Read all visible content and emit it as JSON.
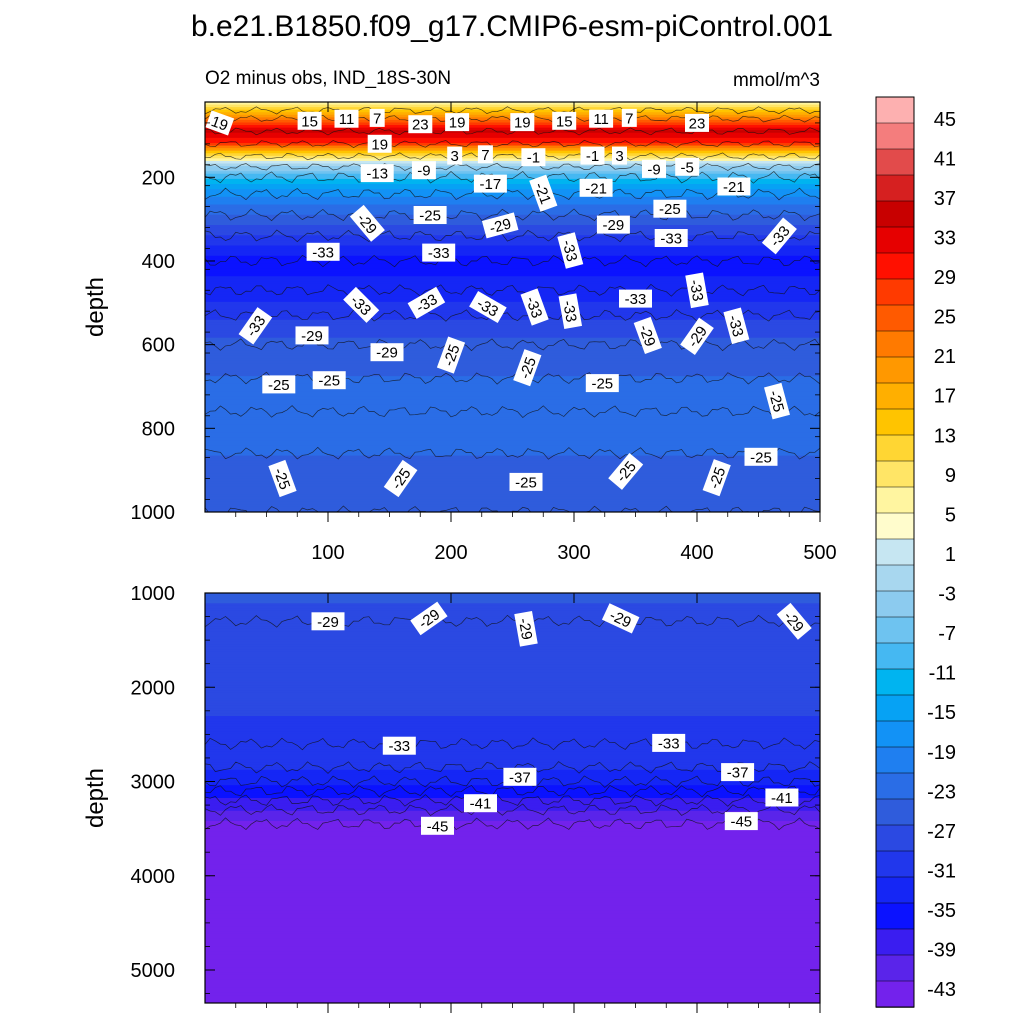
{
  "title": "b.e21.B1850.f09_g17.CMIP6-esm-piControl.001",
  "subtitle_left": "O2 minus obs, IND_18S-30N",
  "subtitle_right": "mmol/m^3",
  "chart_data": [
    {
      "type": "heatmap",
      "name": "upper panel",
      "ylabel": "depth",
      "xlabel": "",
      "xlim": [
        0,
        500
      ],
      "ylim": [
        1000,
        20
      ],
      "xticks": [
        100,
        200,
        300,
        400,
        500
      ],
      "yticks": [
        200,
        400,
        600,
        800,
        1000
      ],
      "grid": false,
      "bands": [
        {
          "depth": 20,
          "value": 5
        },
        {
          "depth": 40,
          "value": 13
        },
        {
          "depth": 60,
          "value": 23
        },
        {
          "depth": 90,
          "value": 37
        },
        {
          "depth": 120,
          "value": 29
        },
        {
          "depth": 150,
          "value": 9
        },
        {
          "depth": 175,
          "value": -3
        },
        {
          "depth": 200,
          "value": -11
        },
        {
          "depth": 240,
          "value": -19
        },
        {
          "depth": 290,
          "value": -25
        },
        {
          "depth": 340,
          "value": -31
        },
        {
          "depth": 400,
          "value": -37
        },
        {
          "depth": 470,
          "value": -35
        },
        {
          "depth": 530,
          "value": -31
        },
        {
          "depth": 600,
          "value": -27
        },
        {
          "depth": 680,
          "value": -25
        },
        {
          "depth": 760,
          "value": -23
        },
        {
          "depth": 860,
          "value": -25
        },
        {
          "depth": 1000,
          "value": -27
        }
      ],
      "contour_labels": [
        {
          "text": "19",
          "x": 12,
          "depth": 70,
          "angle": 20
        },
        {
          "text": "15",
          "x": 85,
          "depth": 65,
          "angle": 0
        },
        {
          "text": "11",
          "x": 115,
          "depth": 60,
          "angle": 0
        },
        {
          "text": "7",
          "x": 140,
          "depth": 58,
          "angle": 0
        },
        {
          "text": "23",
          "x": 175,
          "depth": 73,
          "angle": 0
        },
        {
          "text": "19",
          "x": 205,
          "depth": 68,
          "angle": 0
        },
        {
          "text": "19",
          "x": 258,
          "depth": 68,
          "angle": 0
        },
        {
          "text": "15",
          "x": 292,
          "depth": 65,
          "angle": 0
        },
        {
          "text": "11",
          "x": 322,
          "depth": 60,
          "angle": 0
        },
        {
          "text": "7",
          "x": 345,
          "depth": 58,
          "angle": 0
        },
        {
          "text": "23",
          "x": 400,
          "depth": 70,
          "angle": 0
        },
        {
          "text": "19",
          "x": 142,
          "depth": 120,
          "angle": 0
        },
        {
          "text": "3",
          "x": 203,
          "depth": 148,
          "angle": 0
        },
        {
          "text": "7",
          "x": 228,
          "depth": 145,
          "angle": 0
        },
        {
          "text": "-1",
          "x": 267,
          "depth": 152,
          "angle": 0
        },
        {
          "text": "-1",
          "x": 315,
          "depth": 148,
          "angle": 0
        },
        {
          "text": "3",
          "x": 337,
          "depth": 148,
          "angle": 0
        },
        {
          "text": "-9",
          "x": 365,
          "depth": 180,
          "angle": 0
        },
        {
          "text": "-5",
          "x": 392,
          "depth": 175,
          "angle": 0
        },
        {
          "text": "-13",
          "x": 140,
          "depth": 190,
          "angle": 0
        },
        {
          "text": "-9",
          "x": 178,
          "depth": 183,
          "angle": 0
        },
        {
          "text": "-17",
          "x": 232,
          "depth": 215,
          "angle": 0
        },
        {
          "text": "-21",
          "x": 275,
          "depth": 238,
          "angle": 70
        },
        {
          "text": "-21",
          "x": 318,
          "depth": 225,
          "angle": 0
        },
        {
          "text": "-21",
          "x": 430,
          "depth": 222,
          "angle": 0
        },
        {
          "text": "-29",
          "x": 132,
          "depth": 310,
          "angle": 50
        },
        {
          "text": "-25",
          "x": 183,
          "depth": 290,
          "angle": 0
        },
        {
          "text": "-29",
          "x": 240,
          "depth": 315,
          "angle": -15
        },
        {
          "text": "-29",
          "x": 332,
          "depth": 313,
          "angle": 0
        },
        {
          "text": "-25",
          "x": 378,
          "depth": 275,
          "angle": 0
        },
        {
          "text": "-33",
          "x": 96,
          "depth": 378,
          "angle": 0
        },
        {
          "text": "-33",
          "x": 190,
          "depth": 380,
          "angle": 0
        },
        {
          "text": "-33",
          "x": 297,
          "depth": 375,
          "angle": 75
        },
        {
          "text": "-33",
          "x": 379,
          "depth": 345,
          "angle": 0
        },
        {
          "text": "-33",
          "x": 467,
          "depth": 340,
          "angle": -50
        },
        {
          "text": "-33",
          "x": 350,
          "depth": 490,
          "angle": 0
        },
        {
          "text": "-33",
          "x": 400,
          "depth": 470,
          "angle": 80
        },
        {
          "text": "-33",
          "x": 127,
          "depth": 505,
          "angle": 45
        },
        {
          "text": "-33",
          "x": 180,
          "depth": 500,
          "angle": -30
        },
        {
          "text": "-33",
          "x": 230,
          "depth": 510,
          "angle": 30
        },
        {
          "text": "-33",
          "x": 268,
          "depth": 510,
          "angle": 70
        },
        {
          "text": "-33",
          "x": 297,
          "depth": 520,
          "angle": 80
        },
        {
          "text": "-33",
          "x": 41,
          "depth": 555,
          "angle": -55
        },
        {
          "text": "-33",
          "x": 432,
          "depth": 555,
          "angle": 75
        },
        {
          "text": "-29",
          "x": 87,
          "depth": 578,
          "angle": 0
        },
        {
          "text": "-29",
          "x": 148,
          "depth": 618,
          "angle": 0
        },
        {
          "text": "-25",
          "x": 200,
          "depth": 625,
          "angle": -70
        },
        {
          "text": "-25",
          "x": 262,
          "depth": 655,
          "angle": -70
        },
        {
          "text": "-29",
          "x": 360,
          "depth": 578,
          "angle": 70
        },
        {
          "text": "-29",
          "x": 400,
          "depth": 580,
          "angle": -55
        },
        {
          "text": "-25",
          "x": 60,
          "depth": 695,
          "angle": 0
        },
        {
          "text": "-25",
          "x": 101,
          "depth": 685,
          "angle": 0
        },
        {
          "text": "-25",
          "x": 323,
          "depth": 692,
          "angle": 0
        },
        {
          "text": "-25",
          "x": 465,
          "depth": 735,
          "angle": 75
        },
        {
          "text": "-25",
          "x": 63,
          "depth": 920,
          "angle": 70
        },
        {
          "text": "-25",
          "x": 159,
          "depth": 920,
          "angle": -55
        },
        {
          "text": "-25",
          "x": 261,
          "depth": 928,
          "angle": 0
        },
        {
          "text": "-25",
          "x": 342,
          "depth": 903,
          "angle": -50
        },
        {
          "text": "-25",
          "x": 416,
          "depth": 918,
          "angle": -70
        },
        {
          "text": "-25",
          "x": 452,
          "depth": 868,
          "angle": 0
        }
      ]
    },
    {
      "type": "heatmap",
      "name": "lower panel",
      "ylabel": "depth",
      "xlabel": "",
      "xlim": [
        0,
        500
      ],
      "ylim": [
        5350,
        1000
      ],
      "xticks": [
        100,
        200,
        300,
        400,
        500
      ],
      "yticks": [
        1000,
        2000,
        3000,
        4000,
        5000
      ],
      "grid": false,
      "bands": [
        {
          "depth": 1000,
          "value": -27
        },
        {
          "depth": 1300,
          "value": -29
        },
        {
          "depth": 2600,
          "value": -31
        },
        {
          "depth": 2850,
          "value": -33
        },
        {
          "depth": 3000,
          "value": -35
        },
        {
          "depth": 3100,
          "value": -37
        },
        {
          "depth": 3200,
          "value": -39
        },
        {
          "depth": 3300,
          "value": -41
        },
        {
          "depth": 3450,
          "value": -45
        }
      ],
      "contour_labels": [
        {
          "text": "-29",
          "x": 100,
          "depth": 1300,
          "angle": 0
        },
        {
          "text": "-29",
          "x": 182,
          "depth": 1270,
          "angle": -35
        },
        {
          "text": "-29",
          "x": 261,
          "depth": 1380,
          "angle": 80
        },
        {
          "text": "-29",
          "x": 338,
          "depth": 1270,
          "angle": 25
        },
        {
          "text": "-29",
          "x": 479,
          "depth": 1300,
          "angle": 50
        },
        {
          "text": "-33",
          "x": 158,
          "depth": 2620,
          "angle": 0
        },
        {
          "text": "-33",
          "x": 377,
          "depth": 2590,
          "angle": 0
        },
        {
          "text": "-37",
          "x": 256,
          "depth": 2950,
          "angle": 0
        },
        {
          "text": "-37",
          "x": 433,
          "depth": 2900,
          "angle": 0
        },
        {
          "text": "-41",
          "x": 224,
          "depth": 3230,
          "angle": 0
        },
        {
          "text": "-41",
          "x": 469,
          "depth": 3170,
          "angle": 0
        },
        {
          "text": "-45",
          "x": 189,
          "depth": 3470,
          "angle": 0
        },
        {
          "text": "-45",
          "x": 436,
          "depth": 3420,
          "angle": 0
        }
      ]
    }
  ],
  "colorbar": {
    "levels": [
      "45",
      "41",
      "37",
      "33",
      "29",
      "25",
      "21",
      "17",
      "13",
      "9",
      "5",
      "1",
      "-3",
      "-7",
      "-11",
      "-15",
      "-19",
      "-23",
      "-27",
      "-31",
      "-35",
      "-39",
      "-43"
    ],
    "colors": [
      "#fdb0b0",
      "#f47d7d",
      "#e24b4b",
      "#d62020",
      "#c80000",
      "#e60000",
      "#ff1000",
      "#ff3a00",
      "#ff5a00",
      "#ff7a00",
      "#ff9800",
      "#ffaf00",
      "#ffc400",
      "#ffd633",
      "#ffe566",
      "#fff5a0",
      "#fffccc",
      "#c6e6f2",
      "#a8d7ef",
      "#8ccbef",
      "#6ec3f0",
      "#45b8f2",
      "#00b4f0",
      "#06a2f4",
      "#1292f6",
      "#1f7ff0",
      "#2a6de6",
      "#2f5cdc",
      "#2b49e2",
      "#2137ec",
      "#1526f5",
      "#0b12ff",
      "#3a1df0",
      "#5a24ea",
      "#7322ec"
    ]
  }
}
